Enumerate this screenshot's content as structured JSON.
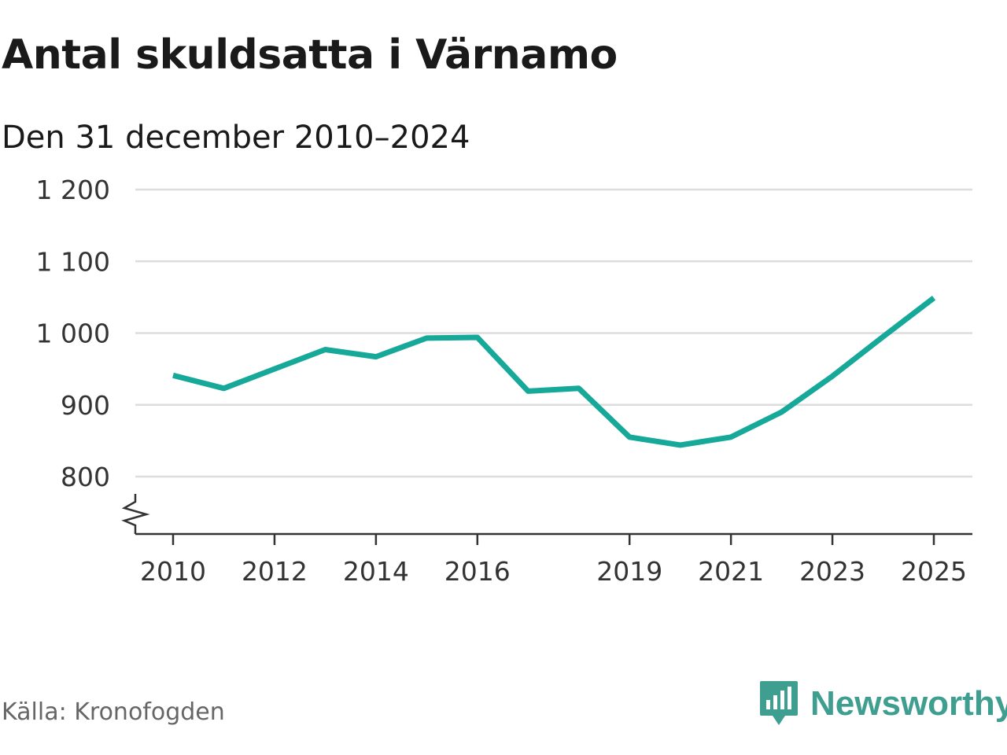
{
  "header": {
    "title": "Antal skuldsatta i Värnamo",
    "subtitle": "Den 31 december 2010–2024"
  },
  "footer": {
    "source": "Källa: Kronofogden",
    "brand": "Newsworthy",
    "brand_color": "#3e9e90"
  },
  "chart_data": {
    "type": "line",
    "title": "Antal skuldsatta i Värnamo",
    "subtitle": "Den 31 december 2010–2024",
    "xlabel": "",
    "ylabel": "",
    "x": [
      2010,
      2011,
      2012,
      2013,
      2014,
      2015,
      2016,
      2017,
      2018,
      2019,
      2020,
      2021,
      2022,
      2023,
      2024,
      2025
    ],
    "series": [
      {
        "values": [
          941,
          923,
          950,
          977,
          967,
          993,
          994,
          919,
          923,
          855,
          844,
          855,
          890,
          940,
          995,
          1049
        ],
        "color": "#16a99a"
      }
    ],
    "x_ticks": [
      "2010",
      "2012",
      "2014",
      "2016",
      "2019",
      "2021",
      "2023",
      "2025"
    ],
    "y_ticks": [
      800,
      900,
      1000,
      1100,
      1200
    ],
    "y_tick_labels": [
      "800",
      "900",
      "1 000",
      "1 100",
      "1 200"
    ],
    "ylim": [
      720,
      1200
    ],
    "xlim": [
      2010,
      2025
    ],
    "grid": "horizontal",
    "axis_break": true,
    "grid_color": "#dddddd",
    "axis_color": "#333333"
  }
}
